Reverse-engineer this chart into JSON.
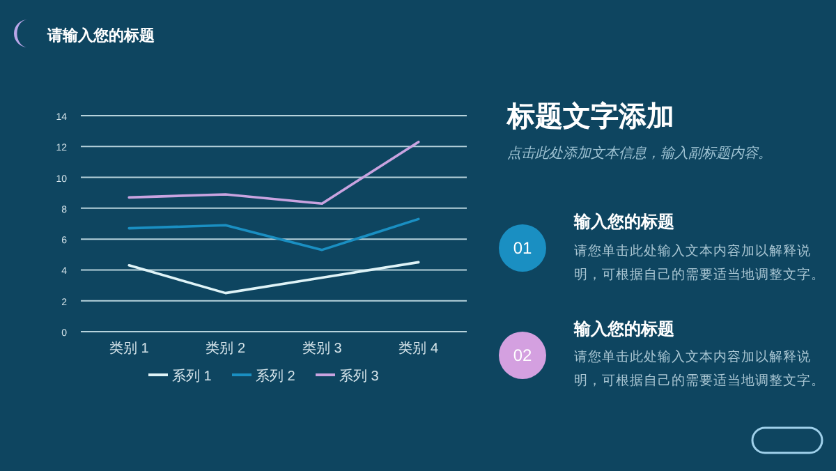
{
  "chart_data": {
    "type": "line",
    "title": "请输入您的标题",
    "categories": [
      "类别 1",
      "类别 2",
      "类别 3",
      "类别 4"
    ],
    "series": [
      {
        "name": "系列 1",
        "color": "#dff3f7",
        "values": [
          4.3,
          2.5,
          3.5,
          4.5
        ]
      },
      {
        "name": "系列 2",
        "color": "#1a8fc2",
        "values": [
          6.7,
          6.9,
          5.3,
          7.3
        ]
      },
      {
        "name": "系列 3",
        "color": "#c9a3e0",
        "values": [
          8.7,
          8.9,
          8.3,
          12.3
        ]
      }
    ],
    "ylim": [
      0,
      14
    ],
    "yticks": [
      0,
      2,
      4,
      6,
      8,
      10,
      12,
      14
    ],
    "grid": "y",
    "legend": "bottom",
    "marker": "none",
    "line_style": "solid",
    "annotations": [
      "标题文字添加",
      "点击此处添加文本信息，输入副标题内容。",
      "01",
      "输入您的标题",
      "请您单击此处输入文本内容加以解释说明，可根据自己的需要适当地调整文字。",
      "02",
      "输入您的标题",
      "请您单击此处输入文本内容加以解释说明，可根据自己的需要适当地调整文字。"
    ]
  }
}
